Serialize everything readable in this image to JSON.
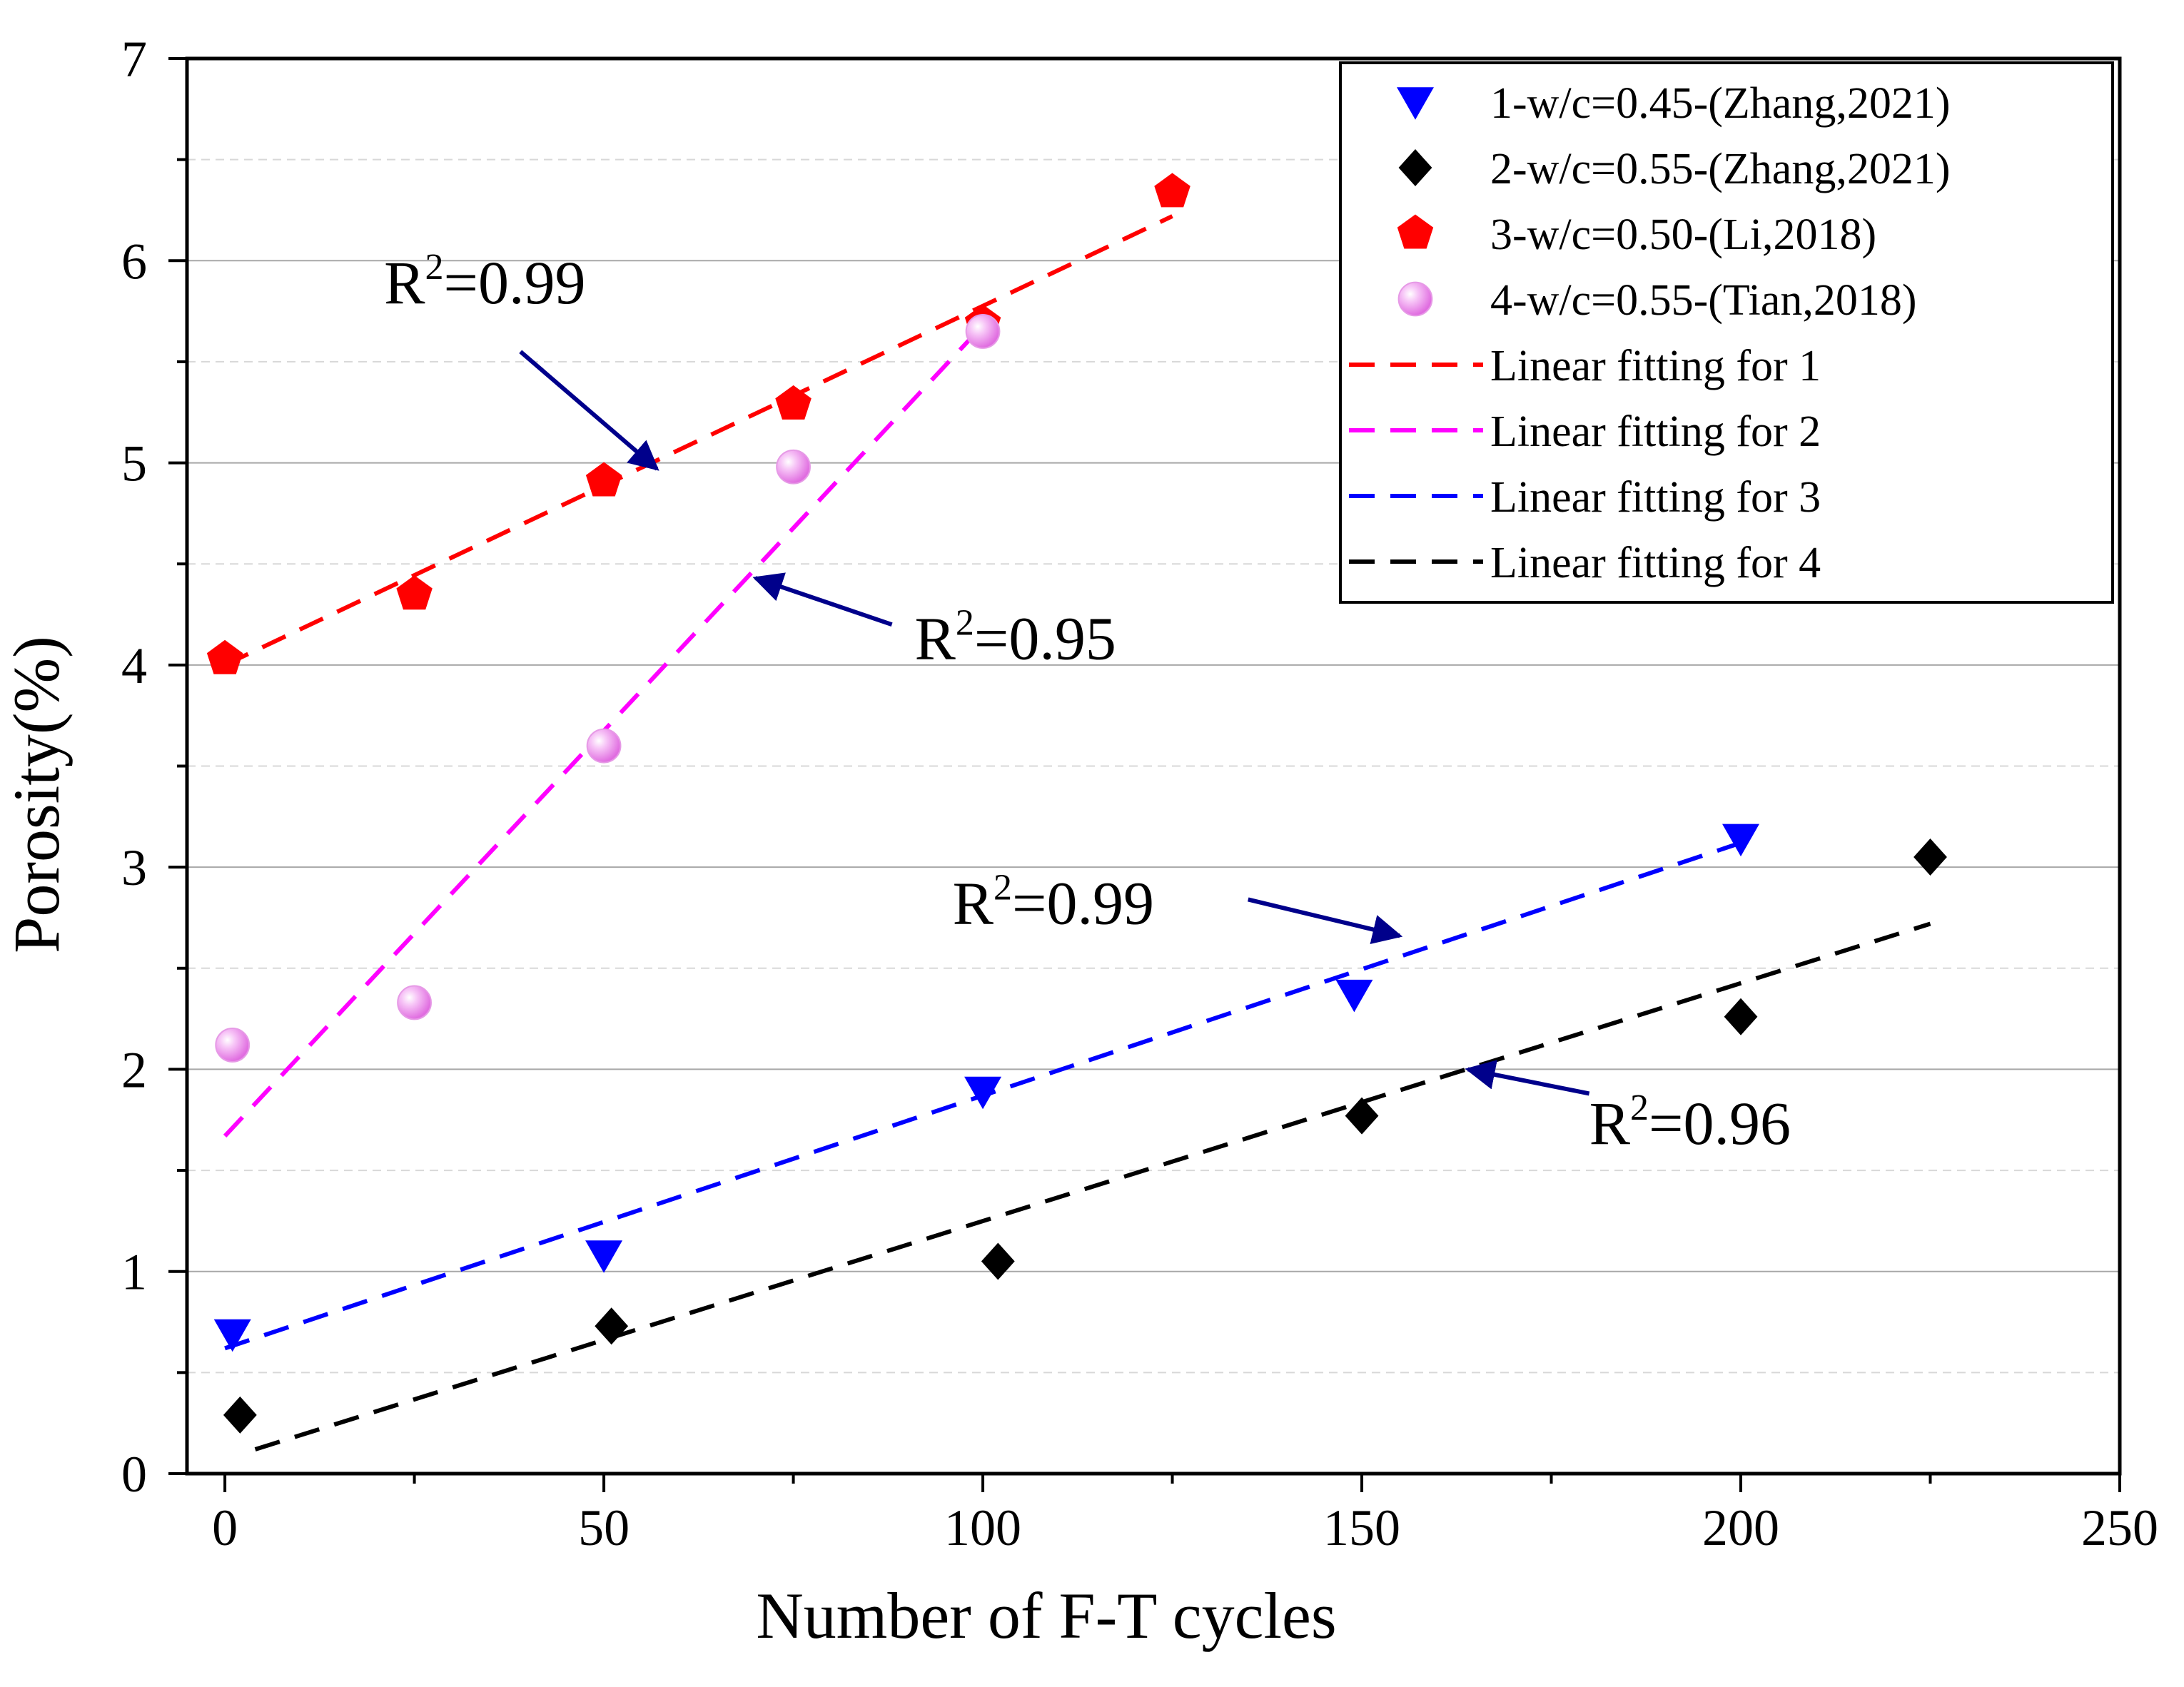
{
  "chart_data": {
    "type": "scatter",
    "xlabel": "Number of F-T cycles",
    "ylabel": "Porosity(%)",
    "xlim": [
      -5,
      250
    ],
    "ylim": [
      0,
      7
    ],
    "xticks": [
      0,
      50,
      100,
      150,
      200,
      250
    ],
    "yticks": [
      0,
      1,
      2,
      3,
      4,
      5,
      6,
      7
    ],
    "x_tick_labels": [
      "0",
      "50",
      "100",
      "150",
      "200",
      "250"
    ],
    "y_tick_labels": [
      "0",
      "1",
      "2",
      "3",
      "4",
      "5",
      "6",
      "7"
    ],
    "grid": true,
    "legend_position": "top-right",
    "series": [
      {
        "name": "1-w/c=0.45-(Zhang,2021)",
        "marker": "triangle-down",
        "color": "#0000ff",
        "x": [
          1,
          50,
          100,
          149,
          200
        ],
        "y": [
          0.69,
          1.08,
          1.89,
          2.37,
          3.14
        ]
      },
      {
        "name": "2-w/c=0.55-(Zhang,2021)",
        "marker": "diamond",
        "color": "#000000",
        "x": [
          2,
          51,
          102,
          150,
          200,
          225
        ],
        "y": [
          0.29,
          0.73,
          1.05,
          1.77,
          2.26,
          3.05
        ]
      },
      {
        "name": "3-w/c=0.50-(Li,2018)",
        "marker": "pentagon",
        "color": "#ff0000",
        "x": [
          0,
          25,
          50,
          75,
          100,
          125
        ],
        "y": [
          4.03,
          4.35,
          4.91,
          5.29,
          5.69,
          6.34
        ]
      },
      {
        "name": "4-w/c=0.55-(Tian,2018)",
        "marker": "sphere",
        "color": "#ee82ee",
        "x": [
          1,
          25,
          50,
          75,
          100
        ],
        "y": [
          2.12,
          2.33,
          3.6,
          4.98,
          5.65
        ]
      }
    ],
    "fits": [
      {
        "name": "Linear fitting for 1",
        "color": "#ff0000",
        "x": [
          0,
          125
        ],
        "y": [
          4.0,
          6.22
        ]
      },
      {
        "name": "Linear fitting for 2",
        "color": "#ff00ff",
        "x": [
          0,
          100
        ],
        "y": [
          1.67,
          5.68
        ]
      },
      {
        "name": "Linear fitting for 3",
        "color": "#0000ff",
        "x": [
          0,
          200
        ],
        "y": [
          0.62,
          3.12
        ]
      },
      {
        "name": "Linear fitting for 4",
        "color": "#000000",
        "x": [
          4,
          225
        ],
        "y": [
          0.12,
          2.72
        ]
      }
    ],
    "annotations": [
      {
        "base": "R",
        "sup": "2",
        "value": "=0.99",
        "text_x": 21,
        "text_y": 5.79,
        "arrow_from": [
          39,
          5.55
        ],
        "arrow_to": [
          57,
          4.97
        ]
      },
      {
        "base": "R",
        "sup": "2",
        "value": "=0.95",
        "text_x": 91,
        "text_y": 4.03,
        "arrow_from": [
          88,
          4.2
        ],
        "arrow_to": [
          70,
          4.43
        ]
      },
      {
        "base": "R",
        "sup": "2",
        "value": "=0.99",
        "text_x": 96,
        "text_y": 2.72,
        "arrow_from": [
          135,
          2.84
        ],
        "arrow_to": [
          155,
          2.66
        ]
      },
      {
        "base": "R",
        "sup": "2",
        "value": "=0.96",
        "text_x": 180,
        "text_y": 1.63,
        "arrow_from": [
          180,
          1.88
        ],
        "arrow_to": [
          164,
          2.0
        ]
      }
    ]
  }
}
